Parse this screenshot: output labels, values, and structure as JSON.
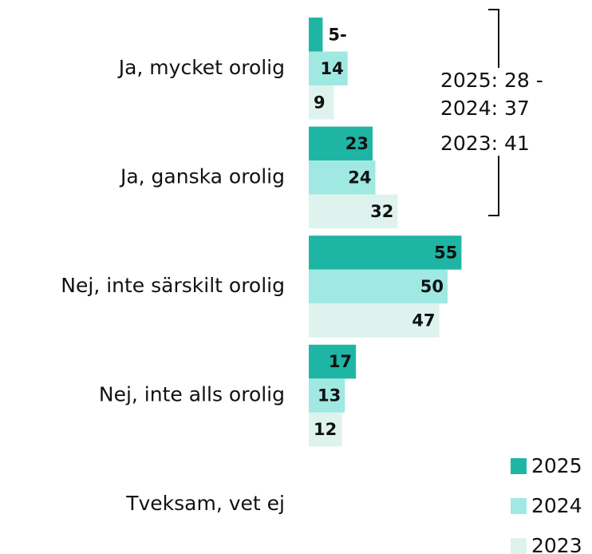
{
  "chart_data": {
    "type": "bar",
    "orientation": "horizontal",
    "categories": [
      "Ja, mycket orolig",
      "Ja, ganska orolig",
      "Nej, inte särskilt orolig",
      "Nej, inte alls orolig",
      "Tveksam, vet ej"
    ],
    "series": [
      {
        "name": "2025",
        "color": "#1fb5a5",
        "values": [
          5,
          23,
          55,
          17,
          null
        ],
        "value_labels": [
          "5-",
          "23",
          "55",
          "17",
          null
        ]
      },
      {
        "name": "2024",
        "color": "#9fe9e2",
        "values": [
          14,
          24,
          50,
          13,
          null
        ]
      },
      {
        "name": "2023",
        "color": "#def3ee",
        "values": [
          9,
          32,
          47,
          12,
          null
        ]
      }
    ],
    "annotations": [
      "2025: 28 -",
      "2024: 37",
      "2023: 41"
    ]
  }
}
